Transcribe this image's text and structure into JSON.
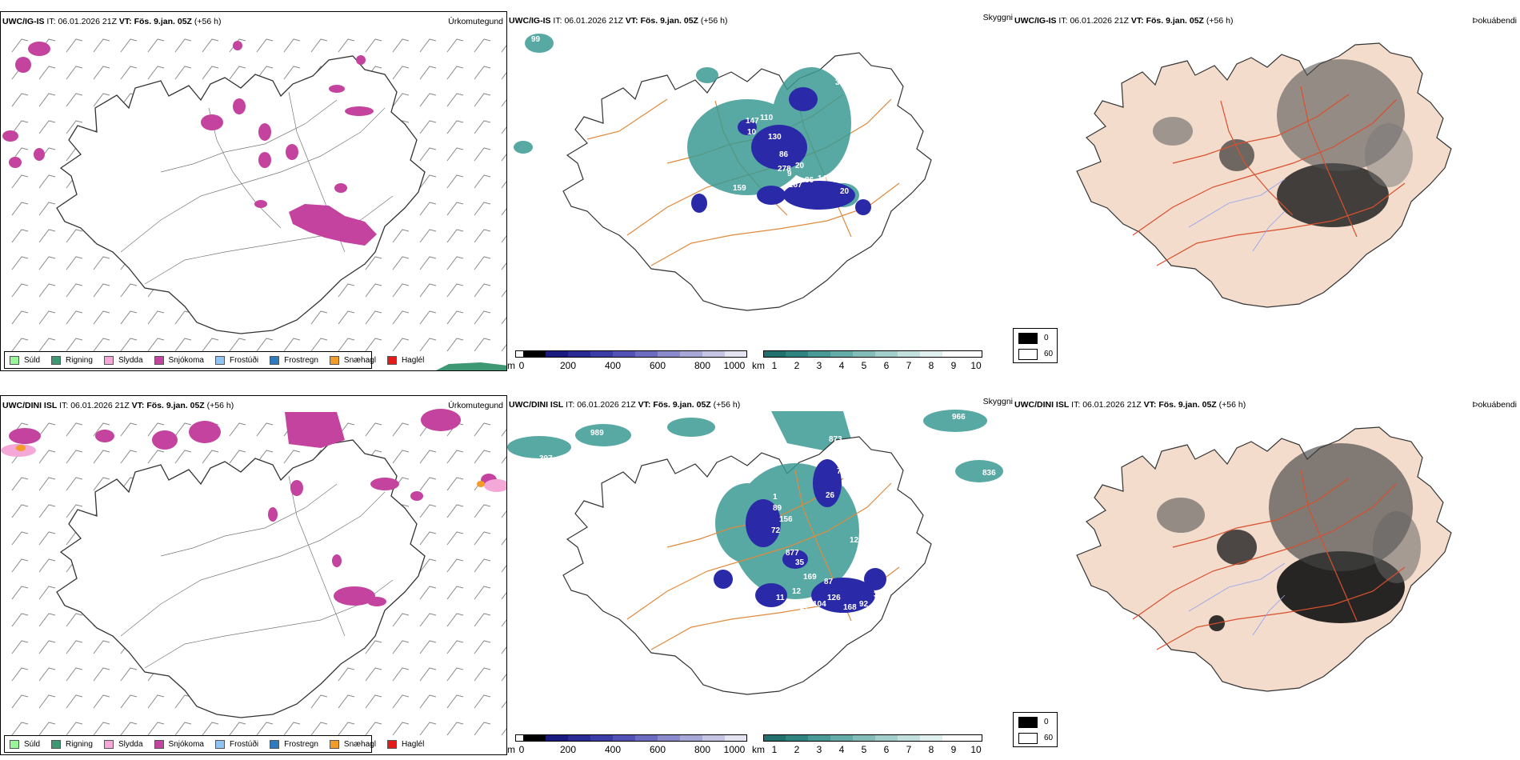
{
  "colors": {
    "precip_legend": [
      "#98f59a",
      "#3d9873",
      "#f4a8d8",
      "#c3439e",
      "#8fc3f3",
      "#2f7bc0",
      "#f39c2a",
      "#e41b1b"
    ],
    "cloud_base": [
      "#ffffff",
      "#1a1a4e",
      "#2a2a8c",
      "#3c3ca6",
      "#5252b4",
      "#6c6cc0",
      "#8a8acc",
      "#a8a8d8",
      "#c6c6e4",
      "#e4e4f2"
    ],
    "visibility": [
      "#21706e",
      "#2e8480",
      "#479a95",
      "#64aca7",
      "#82bdb9",
      "#a2cfcc",
      "#c2e0de",
      "#e0f0ef",
      "#ffffff"
    ],
    "fog": [
      "#000000",
      "#ffffff"
    ],
    "land_fill": "#f3dccb",
    "roads_orange": "#e08a3c",
    "roads_red": "#d9502e",
    "snow": "#c3439e",
    "cloud_blue": "#2a2aa8",
    "vis_green": "#3b9a93"
  },
  "rows": [
    {
      "id": "ig",
      "header": {
        "model": "UWC/IG-IS",
        "it_label": "IT:",
        "it_value": "06.01.2026 21Z",
        "vt_label": "VT:",
        "vt_value": "Fös. 9.jan. 05Z",
        "lead": "(+56 h)"
      },
      "title_precip": "Úrkomutegund",
      "title_vis": "Skyggni",
      "title_fog": "Þokuábendi",
      "labels": [
        "99",
        "330",
        "130",
        "147",
        "10",
        "110",
        "130",
        "86",
        "278",
        "9",
        "20",
        "167",
        "86",
        "142",
        "130",
        "22",
        "20",
        "130",
        "159"
      ]
    },
    {
      "id": "dini",
      "header": {
        "model": "UWC/DINI ISL",
        "it_label": "IT:",
        "it_value": "06.01.2026 21Z",
        "vt_label": "VT:",
        "vt_value": "Fös. 9.jan. 05Z",
        "lead": "(+56 h)"
      },
      "title_precip": "Úrkomutegund",
      "title_vis": "Skyggni",
      "title_fog": "Þokuábendi",
      "labels": [
        "449",
        "989",
        "873",
        "966",
        "397",
        "78",
        "131",
        "26",
        "836",
        "1",
        "89",
        "156",
        "72",
        "122",
        "877",
        "35",
        "169",
        "12",
        "11",
        "126",
        "87",
        "131",
        "27",
        "104",
        "168",
        "92",
        "32"
      ]
    }
  ],
  "precip_legend": [
    "Súld",
    "Rigning",
    "Slydda",
    "Snjókoma",
    "Frostúði",
    "Frostregn",
    "Snæhagl",
    "Haglél"
  ],
  "cloud_base_bar": {
    "unit": "m",
    "ticks": [
      "0",
      "200",
      "400",
      "600",
      "800",
      "1000"
    ]
  },
  "visibility_bar": {
    "unit": "km",
    "ticks": [
      "1",
      "2",
      "3",
      "4",
      "5",
      "6",
      "7",
      "8",
      "9",
      "10"
    ]
  },
  "fog_legend": {
    "values": [
      "0",
      "60"
    ]
  }
}
